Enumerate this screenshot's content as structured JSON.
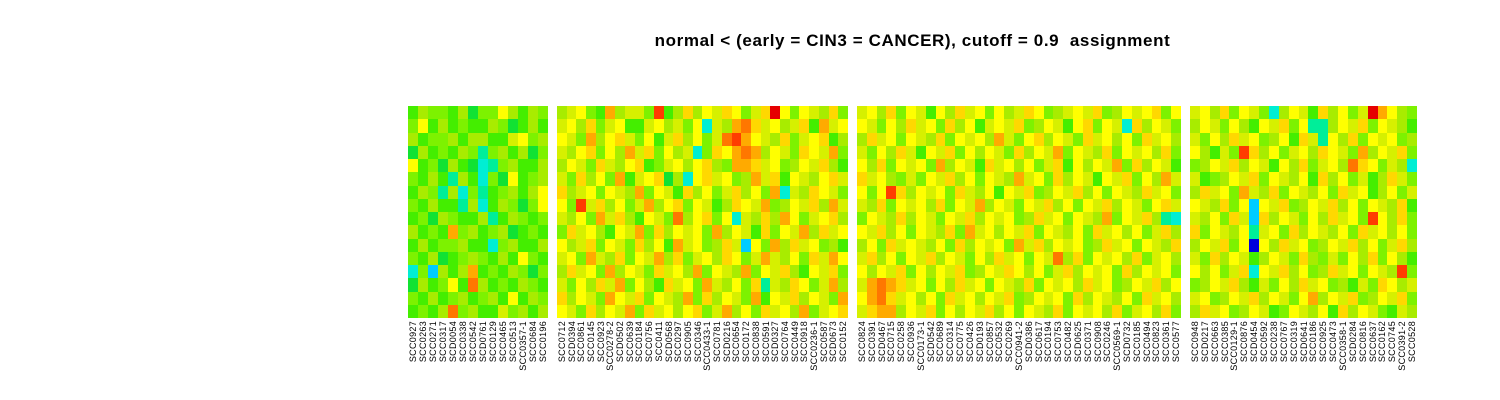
{
  "title": "normal < (early = CIN3 = CANCER), cutoff = 0.9  assignment",
  "chart_data": {
    "type": "heatmap",
    "title": "normal < (early = CIN3 = CANCER), cutoff = 0.9  assignment",
    "n_rows": 16,
    "n_columns": 100,
    "legend_position": "none",
    "grid": "off",
    "colormap": "rainbow: blue (low) -> cyan -> green -> yellow -> orange -> red (high)",
    "value_encoding": "each character in rows strings is a palette key; 0=lowest (blue), f=highest (red)",
    "palette": {
      "0": "#0000DD",
      "1": "#0066FF",
      "2": "#00CCFF",
      "3": "#00EED4",
      "4": "#00EE99",
      "5": "#11E233",
      "6": "#44EE00",
      "7": "#7DF200",
      "8": "#A8EC00",
      "9": "#D6F000",
      "a": "#FFFF00",
      "b": "#FFD800",
      "c": "#FFAA00",
      "d": "#FF7700",
      "e": "#FF3C00",
      "f": "#E60000"
    },
    "blocks": [
      {
        "name": "group-1-normal",
        "columns": [
          "SCC0927",
          "SCC0263",
          "SCC0271",
          "SCC0317",
          "SCD0054",
          "SCC0338",
          "SCC0542",
          "SCD0761",
          "SCC0129",
          "SCC0465",
          "SCC0513",
          "SCC0357-1",
          "SCC0684",
          "SCC0196"
        ],
        "rows": [
          "687768577a8687",
          "7a686766875686",
          "86778688669a78",
          "58676874786857",
          "a6758653478668",
          "7686486375a678",
          "6874837467868a",
          "7686648368757a",
          "67587668468767",
          "8676c786785676",
          "68677866378668",
          "76856787686a76",
          "372868c6768757",
          "5867a6d8676876",
          "7686786786a687",
          "6768d786697868"
        ]
      },
      {
        "name": "group-2-early",
        "columns": [
          "SCC0712",
          "SCD0394",
          "SCC0861",
          "SCC0145",
          "SCC0923",
          "SCC0278-2",
          "SCD0502",
          "SCC0639",
          "SCC0184",
          "SCC0756",
          "SCC0411",
          "SCD0568",
          "SCC0297",
          "SCC0905",
          "SCC0346",
          "SCC0433-1",
          "SCC0781",
          "SCD0216",
          "SCC0654",
          "SCC0172",
          "SCC0838",
          "SCC0591",
          "SCD0327",
          "SCC0764",
          "SCC0449",
          "SCC0918",
          "SCC0236-1",
          "SCC0587",
          "SCD0673",
          "SCC0152"
        ],
        "rows": [
          "89a76c8997e68b8a9ba79bfa7a98b7",
          "9a8b79a669a897a398cdb9a89b6c9a",
          "a97c8ab97a69b8a79deca98b79ab68",
          "98ab7a8c9b7a8937bacdc8a97ba9c7",
          "8a97b98ab679a8ab87ccb9a78a9b86",
          "97b8a7c69ab583ab9a78c9b6a98ab9",
          "b89a7a98c7a96b8a79b8a7c398ba97",
          "a7e9b8a79c8ab7a968ba9c78a9b8c9",
          "98a7c9b86a97d8ab7a398b8ca79ab8",
          "7b9a86a9c7b8a9a7c8a96b7a9c8b9a",
          "a89b7a97b8a6c9a78b92a7c8b9a786",
          "9a7c98b7a9c8b79a8ba79c98a7b9ca",
          "8b9a7c8a97b9a8c7a98c7a9b86a9b7",
          "97a8b9c7a86b9a7c98a7b498ba79c8",
          "b8a97ca9b7a98c7b8a97c6a9b8a97c",
          "a97b8a9c7b9a8ab79c8a7b9a8c79ab"
        ]
      },
      {
        "name": "group-3-cin3",
        "columns": [
          "SCC0824",
          "SCC0391",
          "SCD0467",
          "SCC0715",
          "SCC0258",
          "SCC0936",
          "SCC0173-1",
          "SCD0542",
          "SCC0689",
          "SCC0314",
          "SCC0775",
          "SCC0426",
          "SCD0193",
          "SCC0857",
          "SCC0532",
          "SCC0269",
          "SCC0941-2",
          "SCD0386",
          "SCC0617",
          "SCC0194",
          "SCC0753",
          "SCC0482",
          "SCD0625",
          "SCC0371",
          "SCC0908",
          "SCC0246",
          "SCC0569-1",
          "SCD0732",
          "SCC0185",
          "SCC0494",
          "SCC0823",
          "SCC0361",
          "SCC0577"
        ],
        "rows": [
          "9a8b7a96a8b9a7a89ba789a9b78a9ab7a",
          "a97a8b9a7b8a69a9b78a96ab7a93b8a97",
          "8b9a7a98b7a9a8c97ab8a97b9a8a7b9a8",
          "97a8b96a9b7a8a97b8a9c7a98b7a9a8b7",
          "a8b7a9a7c8a96b9a8a79b6a8a9c7b8a96",
          "b9a8797a9b8a7a98c9a7b8a96a9b7a8c9",
          "a7aeb8a9a7b98a6a9b78a9b8a7a98b9a7",
          "98b7a9a8b7a9c8a97a9b8a7a9b8a97ab9",
          "7a98b8a97a9b8a9a78b9a7a98c7a9b843",
          "a9b8a7a98b7c9a8a9b7a98a7b9a8a79b8",
          "8a7b9a98a7b8a9a7c9b8a9a78b9a7a98b",
          "9b8a7a9b8a97a8b9a7a9d8b7a9a8b79a8",
          "a8a9b7a8a9b78a9ba8a79b8a9a7b8a9a7",
          "9cdcb9a7a8b9a7a98b7a9a8b9a78a9b8a",
          "acdb9a8a7b9a8a9b78a9a7b8a98a7b9a8",
          "9bcc8a9b7a8a9b8a7a98b7a9a8b79a8b7"
        ]
      },
      {
        "name": "group-4-cancer",
        "columns": [
          "SCC0948",
          "SCD0217",
          "SCC0663",
          "SCC0385",
          "SCC0129-1",
          "SCC0876",
          "SCD0454",
          "SCC0592",
          "SCC0238",
          "SCC0767",
          "SCC0319",
          "SCD0641",
          "SCC0186",
          "SCC0925",
          "SCC0473",
          "SCC0358-1",
          "SCD0284",
          "SCC0816",
          "SCC0637",
          "SCC0162",
          "SCC0745",
          "SCC0391-2",
          "SCC0528"
        ],
        "rows": [
          "9a8b7a9738a96b8a79fca87",
          "8a97a86a9b7a448a9b7a986",
          "97a8b9a78a6b94a8b7a9a78",
          "a8697eb8a79a8ba97c8a9b7",
          "78a9b8a96a8b79a8dba7983",
          "9678a9b7a98a6b8a7968b97",
          "8b9a7c98b7a98a7b9a68a79",
          "a98b7a2a9b78a9b8a7a98b6",
          "98a7b92b8a97a8b9a7ea8b7",
          "b7a98a49a7b8a98a7b9a8a7",
          "8a9b7a0a8b9a78a9b8a79b8",
          "97b8a968a97b8797a8b7a86",
          "a8a79b3a9b8a78b9a7a98e7",
          "78a9b8697a8b9a78697ba89",
          "9a78a9b8a97ac8a9b78a9b7",
          "8b9a78a967a98a6b8a97698"
        ]
      }
    ]
  }
}
